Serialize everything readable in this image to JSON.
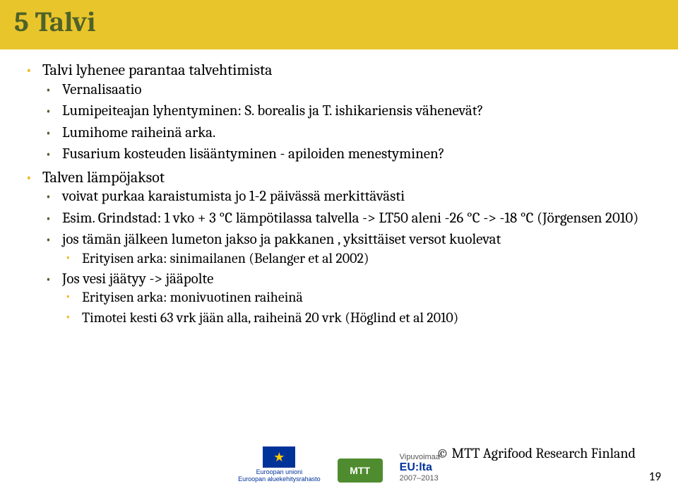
{
  "title": "5 Talvi",
  "bullets": {
    "l0": [
      "Talvi lyhenee parantaa talvehtimista",
      "Talven lämpöjaksot"
    ],
    "b0_l1": [
      "Vernalisaatio",
      "Lumipeiteajan lyhentyminen: S. borealis ja T. ishikariensis vähenevät?",
      "Lumihome raiheinä arka.",
      "Fusarium kosteuden lisääntyminen - apiloiden menestyminen?"
    ],
    "b1_l1": [
      "voivat purkaa karaistumista jo 1-2 päivässä merkittävästi",
      "Esim. Grindstad: 1 vko + 3 °C lämpötilassa talvella -> LT50 aleni -26 °C -> -18 °C (Jörgensen 2010)",
      " jos tämän jälkeen lumeton jakso ja pakkanen , yksittäiset versot kuolevat",
      "Jos vesi jäätyy -> jääpolte"
    ],
    "l2_arka": "Erityisen arka: sinimailanen (Belanger et al 2002)",
    "l2_polte": [
      "Erityisen arka: monivuotinen raiheinä",
      "Timotei kesti 63 vrk jään alla, raiheinä 20 vrk (Höglind et al 2010)"
    ]
  },
  "footer": {
    "eu_l1": "Euroopan unioni",
    "eu_l2": "Euroopan aluekehitysrahasto",
    "mtt": "MTT",
    "vipu_l1": "Vipuvoimaa",
    "vipu_l2": "EU:lta",
    "vipu_l3": "2007–2013",
    "copyright": "© MTT Agrifood Research Finland",
    "page": "19"
  },
  "colors": {
    "band": "#e9c52c",
    "title": "#4f6228",
    "bullet_orange": "#f4b823",
    "bullet_green": "#4f6228"
  }
}
